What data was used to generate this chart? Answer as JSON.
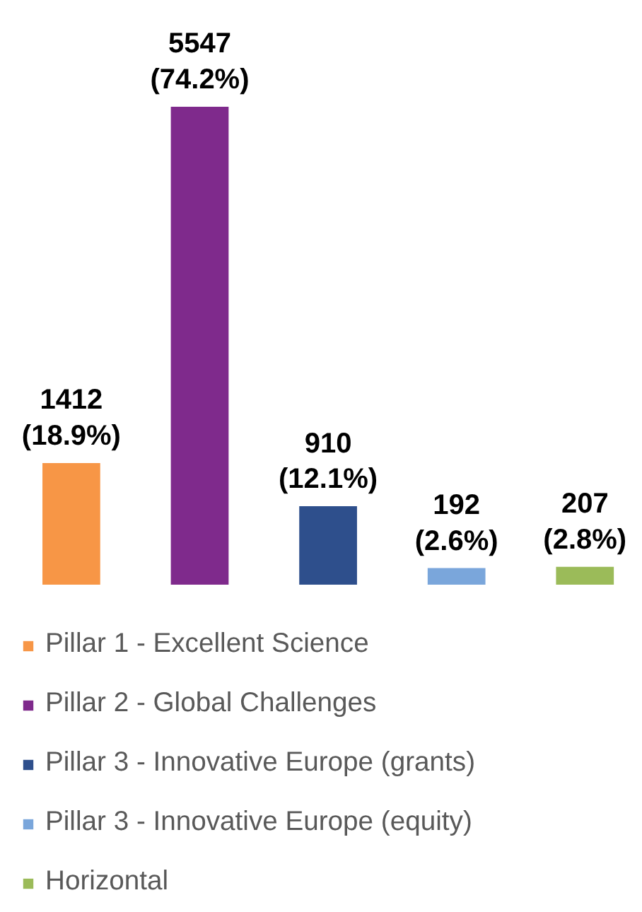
{
  "chart_data": {
    "type": "bar",
    "categories": [
      null,
      null,
      null,
      null,
      null
    ],
    "series": [
      {
        "name": "Pillar 1 - Excellent Science",
        "color": "#f79646",
        "values": [
          1412,
          null,
          null,
          null,
          null
        ],
        "value_labels": [
          "1412\n(18.9%)",
          null,
          null,
          null,
          null
        ]
      },
      {
        "name": "Pillar 2 - Global Challenges",
        "color": "#7f2a8c",
        "values": [
          null,
          5547,
          null,
          null,
          null
        ],
        "value_labels": [
          null,
          "5547\n(74.2%)",
          null,
          null,
          null
        ]
      },
      {
        "name": "Pillar 3 - Innovative Europe (grants)",
        "color": "#2e4f8c",
        "values": [
          null,
          null,
          910,
          null,
          null
        ],
        "value_labels": [
          null,
          null,
          "910\n(12.1%)",
          null,
          null
        ]
      },
      {
        "name": "Pillar 3 - Innovative Europe (equity)",
        "color": "#7aa6db",
        "values": [
          null,
          null,
          null,
          192,
          null
        ],
        "value_labels": [
          null,
          null,
          null,
          "192\n(2.6%)",
          null
        ]
      },
      {
        "name": "Horizontal",
        "color": "#9bbb59",
        "values": [
          null,
          null,
          null,
          null,
          207
        ],
        "value_labels": [
          null,
          null,
          null,
          null,
          "207\n(2.8%)"
        ]
      }
    ],
    "stacked": true,
    "legend": "bottom",
    "grid": false
  }
}
